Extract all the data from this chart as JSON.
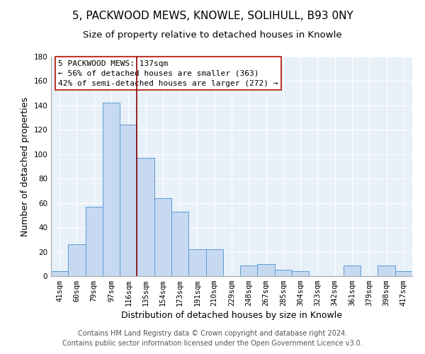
{
  "title": "5, PACKWOOD MEWS, KNOWLE, SOLIHULL, B93 0NY",
  "subtitle": "Size of property relative to detached houses in Knowle",
  "xlabel": "Distribution of detached houses by size in Knowle",
  "ylabel": "Number of detached properties",
  "bar_labels": [
    "41sqm",
    "60sqm",
    "79sqm",
    "97sqm",
    "116sqm",
    "135sqm",
    "154sqm",
    "173sqm",
    "191sqm",
    "210sqm",
    "229sqm",
    "248sqm",
    "267sqm",
    "285sqm",
    "304sqm",
    "323sqm",
    "342sqm",
    "361sqm",
    "379sqm",
    "398sqm",
    "417sqm"
  ],
  "bar_values": [
    4,
    26,
    57,
    142,
    124,
    97,
    64,
    53,
    22,
    22,
    0,
    9,
    10,
    5,
    4,
    0,
    0,
    9,
    0,
    9,
    4
  ],
  "bar_color": "#c6d9f1",
  "bar_edge_color": "#5b9bd5",
  "ylim": [
    0,
    180
  ],
  "yticks": [
    0,
    20,
    40,
    60,
    80,
    100,
    120,
    140,
    160,
    180
  ],
  "annotation_title": "5 PACKWOOD MEWS: 137sqm",
  "annotation_line1": "← 56% of detached houses are smaller (363)",
  "annotation_line2": "42% of semi-detached houses are larger (272) →",
  "vline_x_index": 5,
  "vline_color": "#8b0000",
  "annotation_box_color": "#ffffff",
  "annotation_box_edge": "#c0392b",
  "footer_line1": "Contains HM Land Registry data © Crown copyright and database right 2024.",
  "footer_line2": "Contains public sector information licensed under the Open Government Licence v3.0.",
  "background_color": "#ffffff",
  "grid_color": "#c8ddf0",
  "title_fontsize": 11,
  "subtitle_fontsize": 9.5,
  "axis_label_fontsize": 9,
  "tick_fontsize": 7.5,
  "annotation_fontsize": 8,
  "footer_fontsize": 7
}
